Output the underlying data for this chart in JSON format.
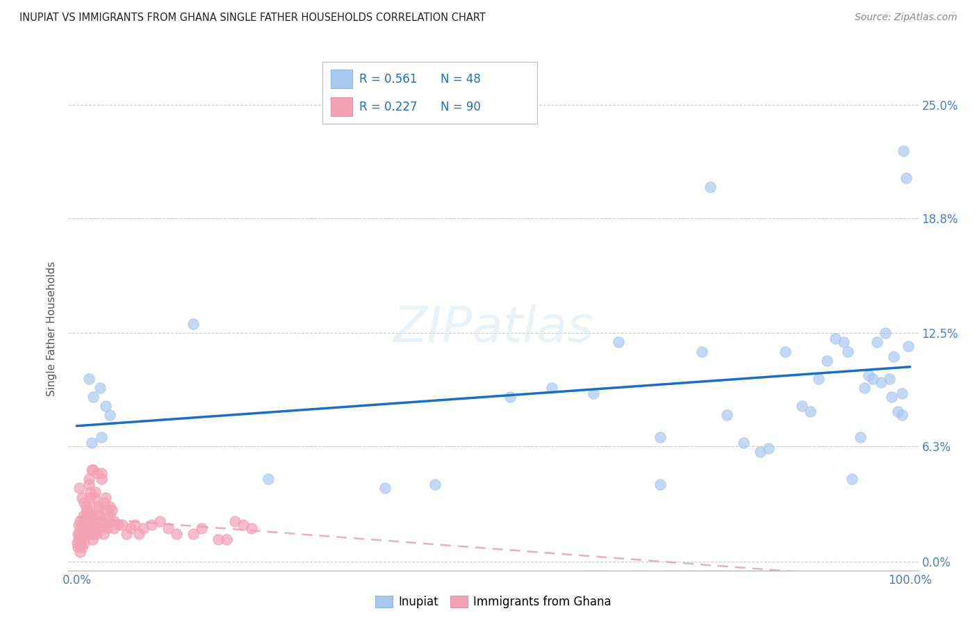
{
  "title": "INUPIAT VS IMMIGRANTS FROM GHANA SINGLE FATHER HOUSEHOLDS CORRELATION CHART",
  "source": "Source: ZipAtlas.com",
  "ylabel": "Single Father Households",
  "y_tick_values": [
    0.0,
    6.3,
    12.5,
    18.8,
    25.0
  ],
  "y_tick_labels": [
    "0.0%",
    "6.3%",
    "12.5%",
    "18.8%",
    "25.0%"
  ],
  "legend_label1": "Inupiat",
  "legend_label2": "Immigrants from Ghana",
  "r1": "0.561",
  "n1": "48",
  "r2": "0.227",
  "n2": "90",
  "color_inupiat": "#a8c8f0",
  "color_ghana": "#f4a0b5",
  "color_line1": "#1a6fc4",
  "color_line2": "#e8a0b0",
  "watermark": "ZIPatlas",
  "inupiat_x": [
    1.5,
    2.0,
    2.8,
    3.5,
    4.0,
    1.8,
    3.0,
    14.0,
    23.0,
    37.0,
    43.0,
    52.0,
    57.0,
    62.0,
    65.0,
    70.0,
    75.0,
    78.0,
    80.0,
    83.0,
    85.0,
    87.0,
    88.0,
    89.0,
    91.0,
    92.0,
    93.0,
    94.0,
    95.0,
    95.5,
    96.0,
    97.0,
    97.5,
    98.0,
    98.5,
    99.0,
    99.2,
    99.5,
    70.0,
    76.0,
    82.0,
    90.0,
    92.5,
    94.5,
    96.5,
    97.8,
    99.0,
    99.8
  ],
  "inupiat_y": [
    10.0,
    9.0,
    9.5,
    8.5,
    8.0,
    6.5,
    6.8,
    13.0,
    4.5,
    4.0,
    4.2,
    9.0,
    9.5,
    9.2,
    12.0,
    6.8,
    11.5,
    8.0,
    6.5,
    6.2,
    11.5,
    8.5,
    8.2,
    10.0,
    12.2,
    12.0,
    4.5,
    6.8,
    10.2,
    10.0,
    12.0,
    12.5,
    10.0,
    11.2,
    8.2,
    8.0,
    22.5,
    21.0,
    4.2,
    20.5,
    6.0,
    11.0,
    11.5,
    9.5,
    9.8,
    9.0,
    9.2,
    11.8
  ],
  "ghana_x": [
    0.05,
    0.1,
    0.15,
    0.2,
    0.25,
    0.3,
    0.35,
    0.4,
    0.45,
    0.5,
    0.55,
    0.6,
    0.65,
    0.7,
    0.75,
    0.8,
    0.85,
    0.9,
    0.95,
    1.0,
    1.05,
    1.1,
    1.15,
    1.2,
    1.25,
    1.3,
    1.35,
    1.4,
    1.45,
    1.5,
    1.55,
    1.6,
    1.65,
    1.7,
    1.75,
    1.8,
    1.85,
    1.9,
    1.95,
    2.0,
    2.1,
    2.2,
    2.3,
    2.4,
    2.5,
    2.6,
    2.7,
    2.8,
    2.9,
    3.0,
    3.2,
    3.4,
    3.6,
    3.8,
    4.0,
    4.5,
    5.0,
    6.0,
    7.0,
    8.0,
    10.0,
    12.0,
    15.0,
    18.0,
    20.0,
    0.3,
    0.6,
    0.9,
    1.2,
    1.5,
    1.8,
    2.1,
    2.4,
    2.7,
    3.0,
    3.3,
    3.6,
    4.0,
    4.5,
    5.5,
    6.5,
    7.5,
    9.0,
    11.0,
    14.0,
    17.0,
    19.0,
    21.0,
    3.5,
    4.2
  ],
  "ghana_y": [
    1.0,
    1.5,
    0.8,
    2.0,
    1.2,
    1.5,
    0.5,
    2.2,
    1.0,
    1.8,
    1.2,
    1.5,
    0.8,
    2.0,
    1.5,
    2.5,
    1.0,
    2.0,
    1.5,
    2.2,
    1.8,
    3.0,
    2.5,
    2.8,
    1.5,
    2.0,
    2.2,
    2.5,
    1.8,
    4.5,
    3.5,
    3.8,
    2.5,
    2.0,
    1.5,
    1.8,
    1.2,
    2.5,
    1.5,
    5.0,
    2.2,
    3.8,
    2.0,
    1.5,
    4.8,
    3.0,
    2.5,
    1.8,
    2.2,
    4.5,
    1.5,
    2.0,
    1.8,
    2.2,
    3.0,
    1.8,
    2.0,
    1.5,
    2.0,
    1.8,
    2.2,
    1.5,
    1.8,
    1.2,
    2.0,
    4.0,
    3.5,
    3.2,
    2.8,
    4.2,
    5.0,
    3.5,
    3.0,
    2.5,
    4.8,
    3.2,
    2.8,
    2.5,
    2.2,
    2.0,
    1.8,
    1.5,
    2.0,
    1.8,
    1.5,
    1.2,
    2.2,
    1.8,
    3.5,
    2.8
  ]
}
